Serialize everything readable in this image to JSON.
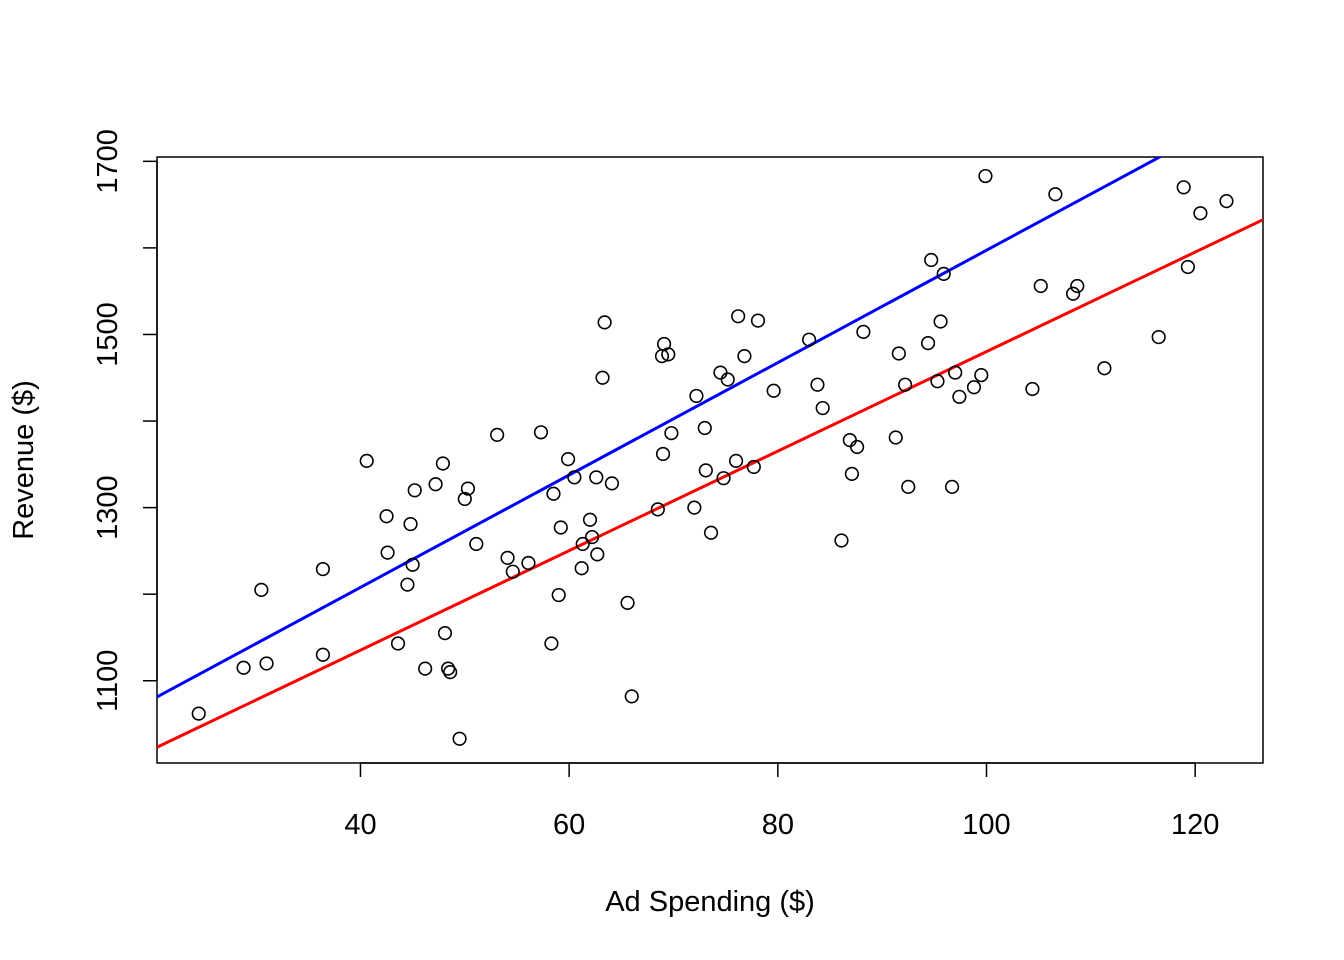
{
  "chart_data": {
    "type": "scatter",
    "title": "",
    "xlabel": "Ad Spending ($)",
    "ylabel": "Revenue ($)",
    "xlim": [
      20.5,
      126.5
    ],
    "ylim": [
      1005,
      1705
    ],
    "xticks": [
      40,
      60,
      80,
      100,
      120
    ],
    "yticks": [
      1100,
      1300,
      1500,
      1700
    ],
    "grid": false,
    "legend": "none",
    "points": [
      [
        24.5,
        1062
      ],
      [
        28.8,
        1115
      ],
      [
        30.5,
        1205
      ],
      [
        31.0,
        1120
      ],
      [
        36.4,
        1229
      ],
      [
        36.4,
        1130
      ],
      [
        40.6,
        1354
      ],
      [
        42.5,
        1290
      ],
      [
        42.6,
        1248
      ],
      [
        43.6,
        1143
      ],
      [
        44.5,
        1211
      ],
      [
        44.8,
        1281
      ],
      [
        45.0,
        1234
      ],
      [
        45.2,
        1320
      ],
      [
        46.2,
        1114
      ],
      [
        47.2,
        1327
      ],
      [
        47.9,
        1351
      ],
      [
        48.1,
        1155
      ],
      [
        48.4,
        1114
      ],
      [
        48.6,
        1110
      ],
      [
        49.5,
        1033
      ],
      [
        50.0,
        1310
      ],
      [
        50.3,
        1322
      ],
      [
        51.1,
        1258
      ],
      [
        53.1,
        1384
      ],
      [
        54.1,
        1242
      ],
      [
        54.6,
        1226
      ],
      [
        56.1,
        1236
      ],
      [
        57.3,
        1387
      ],
      [
        58.3,
        1143
      ],
      [
        58.5,
        1316
      ],
      [
        59.0,
        1199
      ],
      [
        59.2,
        1277
      ],
      [
        59.9,
        1356
      ],
      [
        60.5,
        1335
      ],
      [
        61.2,
        1230
      ],
      [
        61.3,
        1258
      ],
      [
        62.0,
        1286
      ],
      [
        62.2,
        1266
      ],
      [
        62.7,
        1246
      ],
      [
        62.6,
        1335
      ],
      [
        63.2,
        1450
      ],
      [
        63.4,
        1514
      ],
      [
        64.1,
        1328
      ],
      [
        65.6,
        1190
      ],
      [
        66.0,
        1082
      ],
      [
        68.5,
        1298
      ],
      [
        68.9,
        1475
      ],
      [
        69.0,
        1362
      ],
      [
        69.1,
        1489
      ],
      [
        69.5,
        1477
      ],
      [
        69.8,
        1386
      ],
      [
        72.0,
        1300
      ],
      [
        72.2,
        1429
      ],
      [
        73.0,
        1392
      ],
      [
        73.1,
        1343
      ],
      [
        73.6,
        1271
      ],
      [
        74.5,
        1456
      ],
      [
        74.8,
        1334
      ],
      [
        75.2,
        1448
      ],
      [
        76.0,
        1354
      ],
      [
        76.2,
        1521
      ],
      [
        76.8,
        1475
      ],
      [
        77.7,
        1347
      ],
      [
        78.1,
        1516
      ],
      [
        79.6,
        1435
      ],
      [
        83.0,
        1494
      ],
      [
        83.8,
        1442
      ],
      [
        84.3,
        1415
      ],
      [
        86.1,
        1262
      ],
      [
        86.9,
        1378
      ],
      [
        87.1,
        1339
      ],
      [
        87.6,
        1370
      ],
      [
        88.2,
        1503
      ],
      [
        91.3,
        1381
      ],
      [
        91.6,
        1478
      ],
      [
        92.2,
        1442
      ],
      [
        92.5,
        1324
      ],
      [
        94.4,
        1490
      ],
      [
        94.7,
        1586
      ],
      [
        95.3,
        1446
      ],
      [
        95.6,
        1515
      ],
      [
        95.9,
        1570
      ],
      [
        96.7,
        1324
      ],
      [
        97.0,
        1456
      ],
      [
        97.4,
        1428
      ],
      [
        98.8,
        1439
      ],
      [
        99.5,
        1453
      ],
      [
        99.9,
        1683
      ],
      [
        104.4,
        1437
      ],
      [
        105.2,
        1556
      ],
      [
        106.6,
        1662
      ],
      [
        108.3,
        1547
      ],
      [
        108.7,
        1556
      ],
      [
        111.3,
        1461
      ],
      [
        116.5,
        1497
      ],
      [
        118.9,
        1670
      ],
      [
        119.3,
        1578
      ],
      [
        120.5,
        1640
      ],
      [
        123.0,
        1654
      ]
    ],
    "lines": [
      {
        "color": "#ff0000",
        "intercept": 905.4,
        "slope": 5.748
      },
      {
        "color": "#0000ff",
        "intercept": 948.2,
        "slope": 6.491
      }
    ],
    "point_color": "#000000"
  }
}
